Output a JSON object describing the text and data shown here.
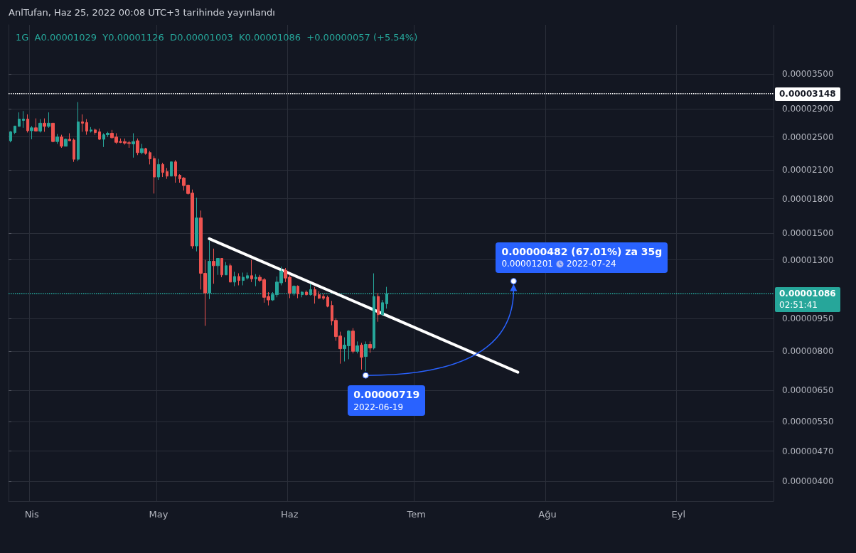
{
  "chart_data": {
    "type": "candlestick",
    "title": "AnlTufan, Haz 25, 2022 00:08 UTC+3 tarihinde yayınlandı",
    "subtitle": "1G  A0.00001029  Y0.00001126  D0.00001003  K0.00001086  +0.00000057 (+5.54%)",
    "log": "y",
    "grid": true,
    "marker": "none",
    "line_style": "solid",
    "categories": [
      null,
      null,
      null,
      null,
      null,
      "Nis",
      null,
      null,
      null,
      null,
      null,
      null,
      null,
      null,
      null,
      null,
      null,
      null,
      null,
      null,
      null,
      null,
      null,
      null,
      null,
      null,
      null,
      null,
      null,
      null,
      null,
      null,
      null,
      null,
      null,
      "May",
      null,
      null,
      null,
      null,
      null,
      null,
      null,
      null,
      null,
      null,
      null,
      null,
      null,
      null,
      null,
      null,
      null,
      null,
      null,
      null,
      null,
      null,
      null,
      null,
      null,
      null,
      null,
      null,
      null,
      null,
      "Haz",
      null,
      null,
      null,
      null,
      null,
      null,
      null,
      null,
      null,
      null,
      null,
      null,
      null,
      null,
      null,
      null,
      null,
      null,
      null,
      null,
      null,
      null,
      null,
      null,
      null,
      null,
      null,
      null,
      null,
      "Tem",
      null,
      null,
      null,
      null,
      null,
      null,
      null,
      null,
      null,
      null,
      null,
      null,
      null,
      null,
      null,
      null,
      null,
      null,
      null,
      null,
      null,
      null,
      null,
      null,
      null,
      null,
      null,
      null,
      null,
      null,
      "Ağu",
      null,
      null,
      null,
      null,
      null,
      null,
      null,
      null,
      null,
      null,
      null,
      null,
      null,
      null,
      null,
      null,
      null,
      null,
      null,
      null,
      null,
      null,
      null,
      null,
      null,
      null,
      null,
      null,
      null,
      null,
      "Eyl",
      null,
      null,
      null,
      null,
      null,
      null,
      null,
      null,
      null,
      null,
      null,
      null,
      null,
      null,
      null,
      null,
      null,
      null,
      null,
      null,
      null,
      null
    ],
    "ylim": [
      3.6e-06,
      4.54e-05
    ],
    "yticks": [
      {
        "value": 3.5e-05,
        "label": "0.00003500"
      },
      {
        "value": 2.9e-05,
        "label": "0.00002900"
      },
      {
        "value": 2.5e-05,
        "label": "0.00002500"
      },
      {
        "value": 2.1e-05,
        "label": "0.00002100"
      },
      {
        "value": 1.8e-05,
        "label": "0.00001800"
      },
      {
        "value": 1.5e-05,
        "label": "0.00001500"
      },
      {
        "value": 1.3e-05,
        "label": "0.00001300"
      },
      {
        "value": 9.5e-06,
        "label": "0.00000950"
      },
      {
        "value": 8e-06,
        "label": "0.00000800"
      },
      {
        "value": 6.5e-06,
        "label": "0.00000650"
      },
      {
        "value": 5.5e-06,
        "label": "0.00000550"
      },
      {
        "value": 4.7e-06,
        "label": "0.00000470"
      },
      {
        "value": 4e-06,
        "label": "0.00000400"
      }
    ],
    "ref_lines": [
      {
        "axis": "y",
        "value": 3.148e-05,
        "label": "0.00003148",
        "color": "#ffffff",
        "line_style": "dotted"
      },
      {
        "axis": "y",
        "value": 1.086e-05,
        "label": "0.00001086",
        "color": "#26a69a",
        "line_style": "dotted"
      }
    ],
    "annotations": [
      "02:51:41",
      "0.00000719",
      "2022-06-19",
      "0.00000482 (67.01%) za 35g",
      "0.00001201",
      "2022-07-24"
    ],
    "series": [
      {
        "ohlc": [
          [
            2.45e-05,
            2.58e-05,
            2.43e-05,
            2.57e-05
          ],
          [
            2.56e-05,
            2.65e-05,
            2.54e-05,
            2.65e-05
          ],
          [
            2.645e-05,
            2.85e-05,
            2.645e-05,
            2.75e-05
          ],
          [
            2.73e-05,
            2.87e-05,
            2.625e-05,
            2.75e-05
          ],
          [
            2.75e-05,
            2.82e-05,
            2.56e-05,
            2.585e-05
          ],
          [
            2.585e-05,
            2.65e-05,
            2.47e-05,
            2.625e-05
          ],
          [
            2.625e-05,
            2.76e-05,
            2.58e-05,
            2.58e-05
          ],
          [
            2.58e-05,
            2.75e-05,
            2.56e-05,
            2.69e-05
          ],
          [
            2.69e-05,
            2.76e-05,
            2.57e-05,
            2.645e-05
          ],
          [
            2.645e-05,
            2.85e-05,
            2.625e-05,
            2.69e-05
          ],
          [
            2.69e-05,
            2.69e-05,
            2.43e-05,
            2.44e-05
          ],
          [
            2.44e-05,
            2.54e-05,
            2.41e-05,
            2.5e-05
          ],
          [
            2.5e-05,
            2.53e-05,
            2.36e-05,
            2.38e-05
          ],
          [
            2.38e-05,
            2.48e-05,
            2.38e-05,
            2.47e-05
          ],
          [
            2.47e-05,
            2.55e-05,
            2.45e-05,
            2.45e-05
          ],
          [
            2.46e-05,
            2.48e-05,
            2.19e-05,
            2.22e-05
          ],
          [
            2.22e-05,
            3.01e-05,
            2.2e-05,
            2.71e-05
          ],
          [
            2.71e-05,
            2.82e-05,
            2.57e-05,
            2.69e-05
          ],
          [
            2.7e-05,
            2.75e-05,
            2.53e-05,
            2.58e-05
          ],
          [
            2.58e-05,
            2.635e-05,
            2.56e-05,
            2.595e-05
          ],
          [
            2.595e-05,
            2.615e-05,
            2.53e-05,
            2.56e-05
          ],
          [
            2.57e-05,
            2.615e-05,
            2.46e-05,
            2.47e-05
          ],
          [
            2.47e-05,
            2.55e-05,
            2.37e-05,
            2.53e-05
          ],
          [
            2.53e-05,
            2.57e-05,
            2.5e-05,
            2.55e-05
          ],
          [
            2.55e-05,
            2.595e-05,
            2.48e-05,
            2.49e-05
          ],
          [
            2.5e-05,
            2.55e-05,
            2.41e-05,
            2.43e-05
          ],
          [
            2.44e-05,
            2.48e-05,
            2.42e-05,
            2.43e-05
          ],
          [
            2.44e-05,
            2.48e-05,
            2.4e-05,
            2.42e-05
          ],
          [
            2.425e-05,
            2.45e-05,
            2.36e-05,
            2.415e-05
          ],
          [
            2.41e-05,
            2.55e-05,
            2.24e-05,
            2.44e-05
          ],
          [
            2.45e-05,
            2.48e-05,
            2.27e-05,
            2.3e-05
          ],
          [
            2.3e-05,
            2.41e-05,
            2.28e-05,
            2.35e-05
          ],
          [
            2.35e-05,
            2.36e-05,
            2.275e-05,
            2.29e-05
          ],
          [
            2.3e-05,
            2.32e-05,
            2.16e-05,
            2.225e-05
          ],
          [
            2.23e-05,
            2.26e-05,
            1.85e-05,
            2.02e-05
          ],
          [
            2.02e-05,
            2.225e-05,
            1.99e-05,
            2.16e-05
          ],
          [
            2.16e-05,
            2.18e-05,
            2.02e-05,
            2.07e-05
          ],
          [
            2.08e-05,
            2.12e-05,
            2e-05,
            2.03e-05
          ],
          [
            2.03e-05,
            2.19e-05,
            2.03e-05,
            2.19e-05
          ],
          [
            2.19e-05,
            2.21e-05,
            1.96e-05,
            2.03e-05
          ],
          [
            2.04e-05,
            2.05e-05,
            1.96e-05,
            2e-05
          ],
          [
            2.01e-05,
            2.02e-05,
            1.88e-05,
            1.93e-05
          ],
          [
            1.935e-05,
            1.94e-05,
            1.84e-05,
            1.85e-05
          ],
          [
            1.855e-05,
            1.89e-05,
            1.38e-05,
            1.4e-05
          ],
          [
            1.4e-05,
            1.81e-05,
            1.36e-05,
            1.625e-05
          ],
          [
            1.625e-05,
            1.69e-05,
            1.11e-05,
            1.21e-05
          ],
          [
            1.21e-05,
            1.3e-05,
            9.15e-06,
            1.09e-05
          ],
          [
            1.09e-05,
            1.44e-05,
            1.055e-05,
            1.29e-05
          ],
          [
            1.29e-05,
            1.38e-05,
            1.145e-05,
            1.26e-05
          ],
          [
            1.26e-05,
            1.31e-05,
            1.2e-05,
            1.31e-05
          ],
          [
            1.31e-05,
            1.31e-05,
            1.185e-05,
            1.2e-05
          ],
          [
            1.2e-05,
            1.285e-05,
            1.2e-05,
            1.26e-05
          ],
          [
            1.26e-05,
            1.275e-05,
            1.155e-05,
            1.155e-05
          ],
          [
            1.155e-05,
            1.22e-05,
            1.13e-05,
            1.19e-05
          ],
          [
            1.19e-05,
            1.21e-05,
            1.135e-05,
            1.165e-05
          ],
          [
            1.165e-05,
            1.215e-05,
            1.135e-05,
            1.185e-05
          ],
          [
            1.18e-05,
            1.215e-05,
            1.17e-05,
            1.195e-05
          ],
          [
            1.195e-05,
            1.3e-05,
            1.155e-05,
            1.175e-05
          ],
          [
            1.175e-05,
            1.205e-05,
            1.13e-05,
            1.185e-05
          ],
          [
            1.185e-05,
            1.2e-05,
            1.155e-05,
            1.165e-05
          ],
          [
            1.17e-05,
            1.18e-05,
            1.035e-05,
            1.065e-05
          ],
          [
            1.07e-05,
            1.095e-05,
            1.02e-05,
            1.05e-05
          ],
          [
            1.05e-05,
            1.095e-05,
            1.045e-05,
            1.08e-05
          ],
          [
            1.08e-05,
            1.19e-05,
            1.065e-05,
            1.155e-05
          ],
          [
            1.15e-05,
            1.255e-05,
            1.135e-05,
            1.225e-05
          ],
          [
            1.23e-05,
            1.245e-05,
            1.155e-05,
            1.18e-05
          ],
          [
            1.185e-05,
            1.2e-05,
            1.06e-05,
            1.09e-05
          ],
          [
            1.09e-05,
            1.135e-05,
            1.075e-05,
            1.13e-05
          ],
          [
            1.13e-05,
            1.135e-05,
            1.06e-05,
            1.085e-05
          ],
          [
            1.08e-05,
            1.1e-05,
            1.065e-05,
            1.095e-05
          ],
          [
            1.095e-05,
            1.105e-05,
            1.075e-05,
            1.08e-05
          ],
          [
            1.08e-05,
            1.145e-05,
            1.075e-05,
            1.11e-05
          ],
          [
            1.11e-05,
            1.125e-05,
            1.03e-05,
            1.075e-05
          ],
          [
            1.08e-05,
            1.1e-05,
            1.055e-05,
            1.06e-05
          ],
          [
            1.07e-05,
            1.085e-05,
            1.05e-05,
            1.06e-05
          ],
          [
            1.065e-05,
            1.075e-05,
            1.01e-05,
            1.015e-05
          ],
          [
            1.02e-05,
            1.045e-05,
            9.18e-06,
            9.39e-06
          ],
          [
            9.42e-06,
            9.53e-06,
            8.45e-06,
            8.64e-06
          ],
          [
            8.67e-06,
            8.87e-06,
            7.48e-06,
            8.1e-06
          ],
          [
            8.1e-06,
            8.61e-06,
            7.57e-06,
            8.26e-06
          ],
          [
            8.23e-06,
            8.94e-06,
            7.66e-06,
            8.9e-06
          ],
          [
            8.9e-06,
            9.04e-06,
            7.9e-06,
            7.99e-06
          ],
          [
            7.99e-06,
            8.42e-06,
            7.9e-06,
            8.23e-06
          ],
          [
            8.26e-06,
            8.36e-06,
            7.25e-06,
            7.74e-06
          ],
          [
            7.77e-06,
            8.42e-06,
            7.19e-06,
            8.29e-06
          ],
          [
            8.29e-06,
            8.42e-06,
            7.93e-06,
            8.13e-06
          ],
          [
            8.13e-06,
            1.21e-05,
            8.07e-06,
            1.07e-05
          ],
          [
            1.07e-05,
            1.09e-05,
            9.35e-06,
            9.71e-06
          ],
          [
            9.71e-06,
            1.05e-05,
            9.67e-06,
            1.035e-05
          ],
          [
            1.029e-05,
            1.126e-05,
            1.003e-05,
            1.086e-05
          ],
          null,
          null,
          null,
          null,
          null,
          null,
          null,
          null,
          null,
          null,
          null,
          null,
          null,
          null,
          null,
          null,
          null,
          null,
          null,
          null,
          null,
          null,
          null,
          null,
          null,
          null,
          null,
          null,
          null,
          null,
          null,
          null,
          null,
          null,
          null,
          null,
          null,
          null,
          null,
          null,
          null,
          null,
          null,
          null,
          null,
          null,
          null,
          null,
          null,
          null,
          null,
          null,
          null,
          null,
          null,
          null,
          null,
          null,
          null,
          null,
          null,
          null,
          null,
          null,
          null,
          null,
          null,
          null,
          null,
          null,
          null,
          null,
          null,
          null,
          null,
          null,
          null,
          null,
          null,
          null,
          null,
          null,
          null,
          null,
          null,
          null,
          null,
          null,
          null,
          null,
          null
        ]
      },
      {
        "type": "line",
        "color": "#ffffff",
        "values": [
          null,
          null,
          null,
          null,
          null,
          null,
          null,
          null,
          null,
          null,
          null,
          null,
          null,
          null,
          null,
          null,
          null,
          null,
          null,
          null,
          null,
          null,
          null,
          null,
          null,
          null,
          null,
          null,
          null,
          null,
          null,
          null,
          null,
          null,
          null,
          null,
          null,
          null,
          null,
          null,
          null,
          null,
          null,
          null,
          null,
          null,
          null,
          1.455e-05,
          null,
          null,
          null,
          null,
          null,
          null,
          null,
          null,
          null,
          null,
          null,
          null,
          null,
          null,
          null,
          null,
          null,
          null,
          null,
          null,
          null,
          null,
          null,
          null,
          null,
          null,
          null,
          null,
          null,
          null,
          null,
          null,
          null,
          null,
          null,
          null,
          null,
          null,
          null,
          null,
          null,
          null,
          null,
          null,
          null,
          null,
          null,
          null,
          null,
          null,
          null,
          null,
          null,
          null,
          null,
          null,
          null,
          null,
          null,
          null,
          null,
          null,
          null,
          null,
          null,
          null,
          null,
          null,
          null,
          null,
          null,
          null,
          7.15e-06,
          null,
          null,
          null,
          null,
          null,
          null,
          null,
          null,
          null,
          null,
          null,
          null,
          null,
          null,
          null,
          null,
          null,
          null,
          null,
          null,
          null,
          null,
          null,
          null,
          null,
          null,
          null,
          null,
          null,
          null,
          null,
          null,
          null,
          null,
          null,
          null,
          null,
          null,
          null,
          null,
          null,
          null,
          null,
          null,
          null,
          null,
          null,
          null,
          null,
          null,
          null,
          null,
          null,
          null,
          null,
          null,
          null,
          null,
          null,
          null
        ]
      }
    ]
  }
}
